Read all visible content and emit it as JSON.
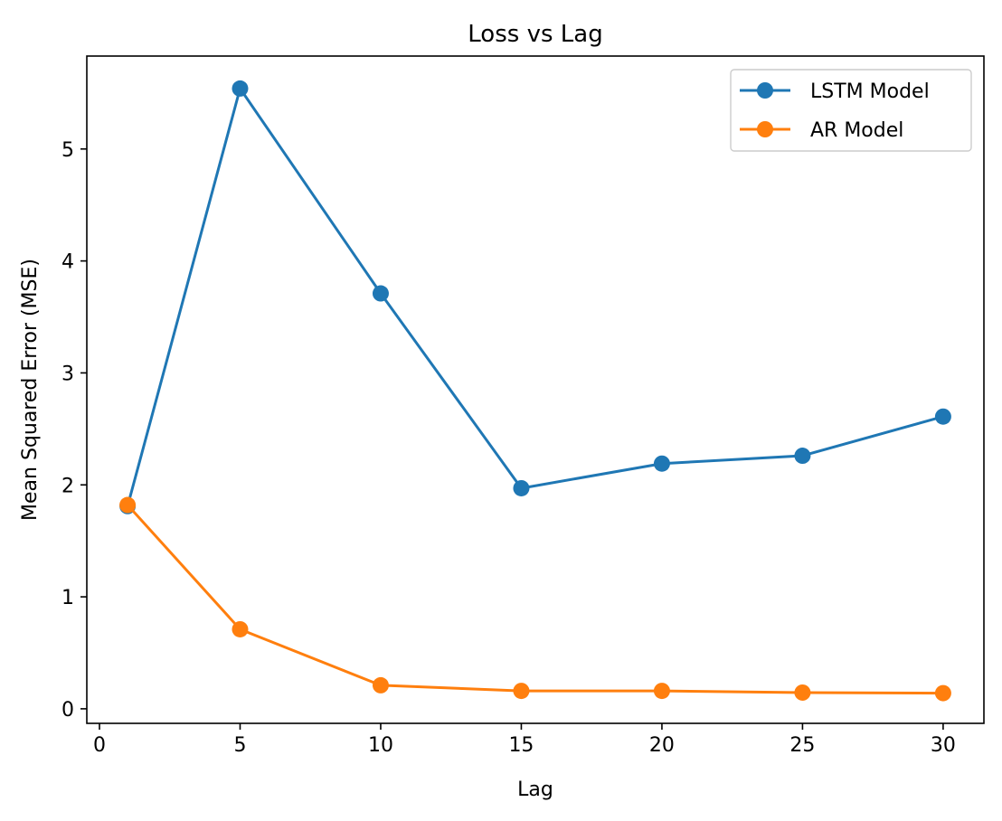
{
  "chart_data": {
    "type": "line",
    "title": "Loss vs Lag",
    "xlabel": "Lag",
    "ylabel": "Mean Squared Error (MSE)",
    "x": [
      1,
      5,
      10,
      15,
      20,
      25,
      30
    ],
    "xlim": [
      -0.45,
      31.45
    ],
    "ylim": [
      -0.13,
      5.83
    ],
    "xticks": [
      0,
      5,
      10,
      15,
      20,
      25,
      30
    ],
    "yticks": [
      0,
      1,
      2,
      3,
      4,
      5
    ],
    "grid": false,
    "legend_position": "top-right",
    "series": [
      {
        "name": "LSTM Model",
        "color": "#1f77b4",
        "marker": "circle",
        "values": [
          1.81,
          5.54,
          3.71,
          1.97,
          2.19,
          2.26,
          2.61
        ]
      },
      {
        "name": "AR Model",
        "color": "#ff7f0e",
        "marker": "circle",
        "values": [
          1.82,
          0.71,
          0.21,
          0.16,
          0.16,
          0.145,
          0.14
        ]
      }
    ]
  }
}
